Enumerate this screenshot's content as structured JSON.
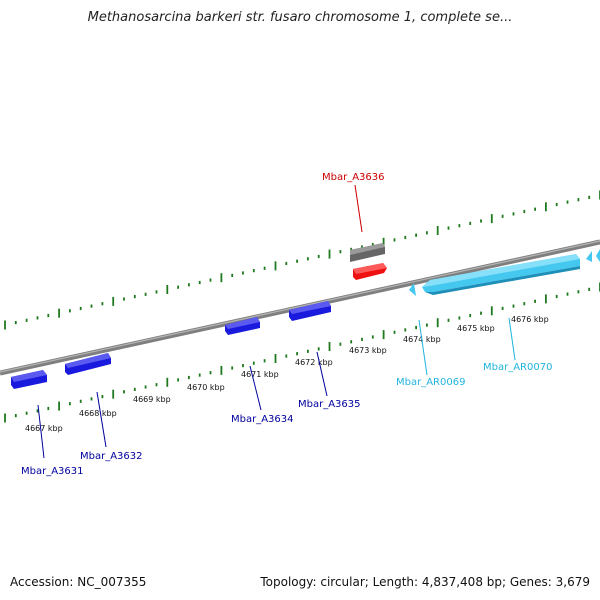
{
  "title": "Methanosarcina barkeri str. fusaro chromosome 1, complete se...",
  "accession": "Accession: NC_007355",
  "stats": "Topology: circular; Length: 4,837,408 bp; Genes: 3,679",
  "colors": {
    "backbone": "#7f7f7f",
    "tick": "#1f7a1f",
    "blue_gene": "#1a1adf",
    "cyan_gene": "#44c8f0",
    "red_gene": "#ee1111",
    "gray_gene": "#666666",
    "label_blue": "#00009c",
    "label_cyan": "#21b4dc",
    "label_red": "#cc0000"
  },
  "kbp_labels": [
    "4667 kbp",
    "4668 kbp",
    "4669 kbp",
    "4670 kbp",
    "4671 kbp",
    "4672 kbp",
    "4673 kbp",
    "4674 kbp",
    "4675 kbp",
    "4676 kbp"
  ],
  "genes": [
    {
      "name": "Mbar_A3631",
      "color": "blue"
    },
    {
      "name": "Mbar_A3632",
      "color": "blue"
    },
    {
      "name": "Mbar_A3634",
      "color": "blue"
    },
    {
      "name": "Mbar_A3635",
      "color": "blue"
    },
    {
      "name": "Mbar_AR0069",
      "color": "cyan"
    },
    {
      "name": "Mbar_AR0070",
      "color": "cyan"
    },
    {
      "name": "Mbar_A3636",
      "color": "red"
    }
  ]
}
